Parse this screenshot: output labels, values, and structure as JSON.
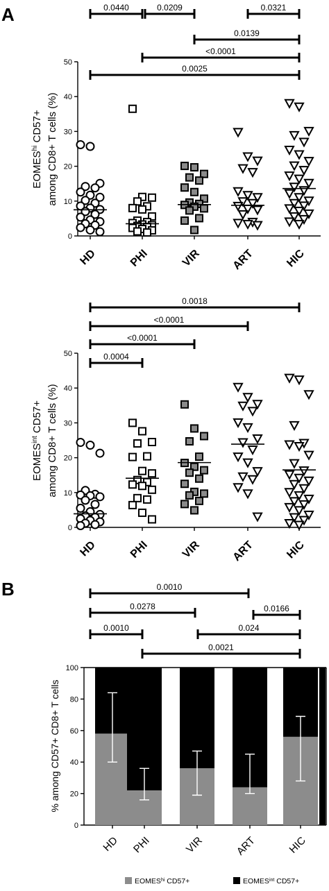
{
  "chart_data": [
    {
      "type": "scatter",
      "panel": "A",
      "ylabel": "EOMEShi CD57+ among CD8+ T cells (%)",
      "ylabel_parts": {
        "pre": "EOMES",
        "sup": "hi",
        "post": " CD57+",
        "line2": "among CD8+ T cells (%)"
      },
      "ylim": [
        0,
        50
      ],
      "yticks": [
        0,
        10,
        20,
        30,
        40,
        50
      ],
      "categories": [
        "HD",
        "PHI",
        "VIR",
        "ART",
        "HIC"
      ],
      "markers": [
        "circle",
        "square",
        "filled-square",
        "triangle",
        "triangle"
      ],
      "points": [
        [
          26.2,
          25.7,
          15.1,
          14.2,
          13.8,
          12.6,
          11.7,
          11.1,
          10.2,
          9.4,
          8.6,
          8.0,
          7.6,
          7.0,
          6.2,
          5.4,
          4.6,
          4.1,
          3.5,
          3.1,
          2.4,
          1.7,
          1.2
        ],
        [
          36.5,
          11.2,
          11.0,
          9.9,
          8.5,
          8.0,
          7.6,
          5.6,
          4.4,
          4.0,
          3.7,
          3.3,
          3.1,
          2.9,
          2.6,
          2.3,
          2.0,
          1.6,
          1.3,
          1.0
        ],
        [
          20.1,
          19.7,
          17.8,
          16.8,
          15.9,
          13.9,
          12.6,
          10.7,
          9.6,
          9.2,
          8.9,
          8.4,
          7.9,
          7.3,
          5.1,
          4.4,
          1.7
        ],
        [
          29.8,
          22.8,
          21.6,
          19.4,
          18.3,
          12.8,
          11.7,
          11.1,
          9.9,
          9.4,
          8.6,
          7.8,
          7.5,
          6.2,
          4.0,
          3.7,
          3.4,
          3.1
        ],
        [
          38.1,
          37.1,
          30.1,
          28.9,
          27.0,
          24.7,
          23.4,
          21.5,
          20.2,
          18.9,
          17.3,
          16.4,
          15.2,
          14.1,
          13.1,
          12.2,
          11.1,
          10.1,
          9.4,
          8.7,
          7.9,
          7.2,
          6.4,
          5.6,
          4.8,
          4.1,
          3.4
        ]
      ],
      "medians": [
        7.5,
        3.5,
        9.0,
        8.8,
        13.6
      ],
      "comparisons": [
        {
          "from": "HD",
          "to": "PHI",
          "label": "0.0440"
        },
        {
          "from": "PHI",
          "to": "VIR",
          "label": "0.0209"
        },
        {
          "from": "ART",
          "to": "HIC",
          "label": "0.0321"
        },
        {
          "from": "VIR",
          "to": "HIC",
          "label": "0.0139"
        },
        {
          "from": "PHI",
          "to": "HIC",
          "label": "<0.0001"
        },
        {
          "from": "HD",
          "to": "HIC",
          "label": "0.0025"
        }
      ]
    },
    {
      "type": "scatter",
      "panel": "",
      "ylabel": "EOMESint CD57+ among CD8+ T cells (%)",
      "ylabel_parts": {
        "pre": "EOMES",
        "sup": "int",
        "post": " CD57+",
        "line2": "among CD8+ T cells (%)"
      },
      "ylim": [
        0,
        50
      ],
      "yticks": [
        0,
        10,
        20,
        30,
        40,
        50
      ],
      "categories": [
        "HD",
        "PHI",
        "VIR",
        "ART",
        "HIC"
      ],
      "markers": [
        "circle",
        "square",
        "filled-square",
        "triangle",
        "triangle"
      ],
      "points": [
        [
          24.4,
          23.6,
          21.3,
          10.6,
          9.5,
          9.3,
          9.1,
          8.8,
          7.8,
          6.6,
          5.5,
          4.5,
          3.7,
          3.3,
          2.9,
          2.5,
          2.0,
          1.6,
          1.2,
          0.8,
          0.5
        ],
        [
          30.0,
          27.6,
          24.5,
          24.1,
          20.4,
          20.2,
          16.2,
          15.5,
          13.6,
          13.0,
          12.3,
          11.9,
          10.8,
          8.4,
          8.0,
          6.4,
          4.2,
          2.3
        ],
        [
          35.3,
          28.4,
          26.2,
          24.7,
          20.3,
          18.5,
          17.4,
          16.4,
          15.7,
          14.0,
          12.5,
          10.2,
          9.7,
          9.2,
          7.6,
          6.7,
          4.9
        ],
        [
          40.3,
          37.4,
          35.4,
          34.9,
          33.4,
          30.1,
          28.7,
          25.5,
          24.4,
          22.3,
          20.3,
          18.6,
          16.1,
          14.6,
          13.8,
          11.5,
          9.7,
          3.1
        ],
        [
          42.9,
          42.4,
          38.2,
          29.3,
          24.2,
          23.8,
          23.3,
          20.8,
          18.4,
          16.3,
          15.2,
          14.2,
          13.4,
          12.4,
          11.2,
          10.1,
          9.2,
          8.2,
          7.5,
          6.6,
          5.8,
          4.9,
          3.6,
          2.9,
          2.1,
          1.2,
          0.7
        ]
      ],
      "medians": [
        3.9,
        14.1,
        18.6,
        23.9,
        16.5
      ],
      "comparisons": [
        {
          "from": "HD",
          "to": "PHI",
          "label": "0.0004"
        },
        {
          "from": "HD",
          "to": "VIR",
          "label": "<0.0001"
        },
        {
          "from": "HD",
          "to": "ART",
          "label": "<0.0001"
        },
        {
          "from": "HD",
          "to": "HIC",
          "label": "0.0018"
        }
      ]
    },
    {
      "type": "bar",
      "panel": "B",
      "stacked": true,
      "ylabel": "% among CD57+ CD8+ T cells",
      "ylim": [
        0,
        100
      ],
      "yticks": [
        0,
        20,
        40,
        60,
        80,
        100
      ],
      "categories": [
        "HD",
        "PHI",
        "VIR",
        "ART",
        "HIC"
      ],
      "series": [
        {
          "name": "EOMEShi CD57+",
          "name_parts": {
            "pre": "EOMES",
            "sup": "hi",
            "post": " CD57+"
          },
          "color": "#8c8c8c",
          "values": [
            58,
            22,
            36,
            24,
            56
          ],
          "error_low": [
            40,
            16,
            19,
            20,
            28
          ],
          "error_high": [
            84,
            36,
            47,
            45,
            69
          ]
        },
        {
          "name": "EOMESint CD57+",
          "name_parts": {
            "pre": "EOMES",
            "sup": "int",
            "post": " CD57+"
          },
          "color": "#000000",
          "values": [
            42,
            78,
            64,
            76,
            44
          ]
        }
      ],
      "legend": "bottom",
      "comparisons": [
        {
          "from": "HD",
          "to": "ART",
          "label": "0.0010"
        },
        {
          "from": "HD",
          "to": "VIR",
          "label": "0.0278"
        },
        {
          "from": "ART",
          "to": "HIC",
          "label": "0.0166"
        },
        {
          "from": "HD",
          "to": "PHI",
          "label": "0.0010"
        },
        {
          "from": "VIR",
          "to": "HIC",
          "label": "0.024"
        },
        {
          "from": "PHI",
          "to": "HIC",
          "label": "0.0021"
        }
      ]
    }
  ]
}
